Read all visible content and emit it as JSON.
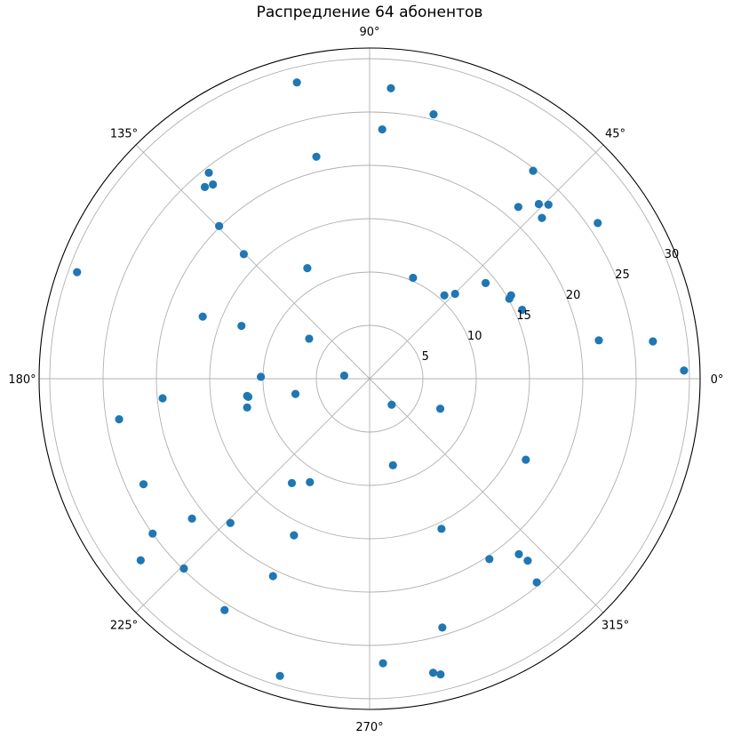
{
  "chart_data": {
    "type": "scatter",
    "projection": "polar",
    "title": "Распредление 64 абонентов",
    "theta_ticks_deg": [
      0,
      45,
      90,
      135,
      180,
      225,
      270,
      315
    ],
    "theta_tick_labels": [
      "0°",
      "45°",
      "90°",
      "135°",
      "180°",
      "225°",
      "270°",
      "315°"
    ],
    "r_ticks": [
      5,
      10,
      15,
      20,
      25,
      30
    ],
    "r_tick_labels": [
      "5",
      "10",
      "15",
      "20",
      "25",
      "30"
    ],
    "rlim": [
      0,
      31
    ],
    "grid": true,
    "marker_color": "#1f77b4",
    "points": [
      {
        "theta": 1.5,
        "r": 29.5
      },
      {
        "theta": 7.5,
        "r": 26.8
      },
      {
        "theta": 9.5,
        "r": 21.8
      },
      {
        "theta": 24.3,
        "r": 15.7
      },
      {
        "theta": 34.3,
        "r": 25.9
      },
      {
        "theta": 44.2,
        "r": 23.4
      },
      {
        "theta": 45.9,
        "r": 22.8
      },
      {
        "theta": 43.0,
        "r": 22.1
      },
      {
        "theta": 51.8,
        "r": 24.8
      },
      {
        "theta": 49.1,
        "r": 21.3
      },
      {
        "theta": 44.8,
        "r": 11.3
      },
      {
        "theta": 29.8,
        "r": 15.1
      },
      {
        "theta": 30.5,
        "r": 15.4
      },
      {
        "theta": 39.5,
        "r": 14.1
      },
      {
        "theta": 48.1,
        "r": 10.5
      },
      {
        "theta": 66.7,
        "r": 10.3
      },
      {
        "theta": 76.4,
        "r": 25.5
      },
      {
        "theta": 85.8,
        "r": 27.3
      },
      {
        "theta": 87.1,
        "r": 23.4
      },
      {
        "theta": 103.5,
        "r": 21.4
      },
      {
        "theta": 103.8,
        "r": 28.6
      },
      {
        "theta": 119.4,
        "r": 11.9
      },
      {
        "theta": 146.5,
        "r": 6.8
      },
      {
        "theta": 135.3,
        "r": 16.6
      },
      {
        "theta": 134.6,
        "r": 20.1
      },
      {
        "theta": 130.7,
        "r": 23.7
      },
      {
        "theta": 128.9,
        "r": 23.4
      },
      {
        "theta": 128.0,
        "r": 24.5
      },
      {
        "theta": 160.0,
        "r": 29.2
      },
      {
        "theta": 157.6,
        "r": 13.0
      },
      {
        "theta": 159.6,
        "r": 16.7
      },
      {
        "theta": 173.0,
        "r": 2.4
      },
      {
        "theta": 179.0,
        "r": 10.2
      },
      {
        "theta": 185.4,
        "r": 19.5
      },
      {
        "theta": 188.0,
        "r": 11.6
      },
      {
        "theta": 188.5,
        "r": 11.5
      },
      {
        "theta": 193.2,
        "r": 11.8
      },
      {
        "theta": 205.0,
        "r": 23.4
      },
      {
        "theta": 191.6,
        "r": 7.1
      },
      {
        "theta": 189.2,
        "r": 23.8
      },
      {
        "theta": 218.2,
        "r": 21.2
      },
      {
        "theta": 215.5,
        "r": 25.0
      },
      {
        "theta": 218.4,
        "r": 27.4
      },
      {
        "theta": 225.6,
        "r": 24.9
      },
      {
        "theta": 226.0,
        "r": 18.8
      },
      {
        "theta": 233.3,
        "r": 12.2
      },
      {
        "theta": 240.0,
        "r": 11.2
      },
      {
        "theta": 244.2,
        "r": 16.3
      },
      {
        "theta": 237.9,
        "r": 25.6
      },
      {
        "theta": 243.9,
        "r": 20.6
      },
      {
        "theta": 253.2,
        "r": 29.1
      },
      {
        "theta": 272.7,
        "r": 26.7
      },
      {
        "theta": 286.3,
        "r": 24.3
      },
      {
        "theta": 283.5,
        "r": 28.5
      },
      {
        "theta": 282.2,
        "r": 28.2
      },
      {
        "theta": 285.1,
        "r": 8.4
      },
      {
        "theta": 295.6,
        "r": 15.6
      },
      {
        "theta": 303.6,
        "r": 20.3
      },
      {
        "theta": 310.4,
        "r": 21.6
      },
      {
        "theta": 311.0,
        "r": 22.6
      },
      {
        "theta": 309.4,
        "r": 24.7
      },
      {
        "theta": 332.6,
        "r": 16.5
      },
      {
        "theta": 337.0,
        "r": 7.2
      },
      {
        "theta": 310.3,
        "r": 3.2
      }
    ]
  }
}
